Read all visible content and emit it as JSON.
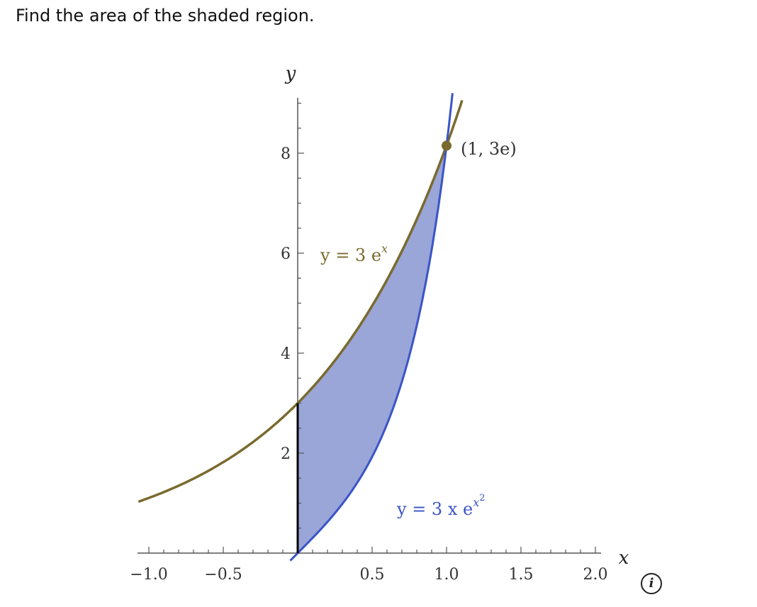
{
  "question": "Find the area of the shaded region.",
  "info_button": "i",
  "chart_data": {
    "type": "line",
    "title": "",
    "xlabel": "x",
    "ylabel": "y",
    "xlim": [
      -1.07,
      2.12
    ],
    "ylim": [
      -0.2,
      9.1
    ],
    "x_ticks": [
      {
        "value": -1.0,
        "label": "−1.0"
      },
      {
        "value": -0.5,
        "label": "−0.5"
      },
      {
        "value": 0.5,
        "label": "0.5"
      },
      {
        "value": 1.0,
        "label": "1.0"
      },
      {
        "value": 1.5,
        "label": "1.5"
      },
      {
        "value": 2.0,
        "label": "2.0"
      }
    ],
    "y_ticks": [
      {
        "value": 2,
        "label": "2"
      },
      {
        "value": 4,
        "label": "4"
      },
      {
        "value": 6,
        "label": "6"
      },
      {
        "value": 8,
        "label": "8"
      }
    ],
    "series": [
      {
        "name": "y = 3e^x",
        "label_main": "y = 3 e",
        "label_sup": "x",
        "color": "#7a6a2e",
        "function": "3*exp(x)",
        "x": [
          -1.05,
          -0.75,
          -0.5,
          -0.25,
          0,
          0.25,
          0.5,
          0.75,
          1.0,
          1.1
        ],
        "values": [
          1.05,
          1.42,
          1.82,
          2.34,
          3.0,
          3.85,
          4.95,
          6.35,
          8.15,
          9.01
        ]
      },
      {
        "name": "y = 3x e^(x^2)",
        "label_main": "y = 3 x e",
        "label_sup": "x",
        "label_sup2": "2",
        "color": "#3a54c8",
        "function": "3*x*exp(x^2)",
        "x": [
          -0.05,
          0,
          0.25,
          0.5,
          0.75,
          0.9,
          1.0,
          1.04
        ],
        "values": [
          -0.15,
          0,
          0.8,
          1.93,
          3.94,
          6.08,
          8.15,
          9.2
        ]
      }
    ],
    "shaded_region": {
      "x_from": 0,
      "x_to": 1,
      "upper": "y = 3e^x",
      "lower": "y = 3x e^(x^2)",
      "color": "#9aa5d8"
    },
    "annotations": [
      {
        "text": "(1, 3e)",
        "x": 1.0,
        "y": 8.15
      }
    ],
    "grid": false
  }
}
